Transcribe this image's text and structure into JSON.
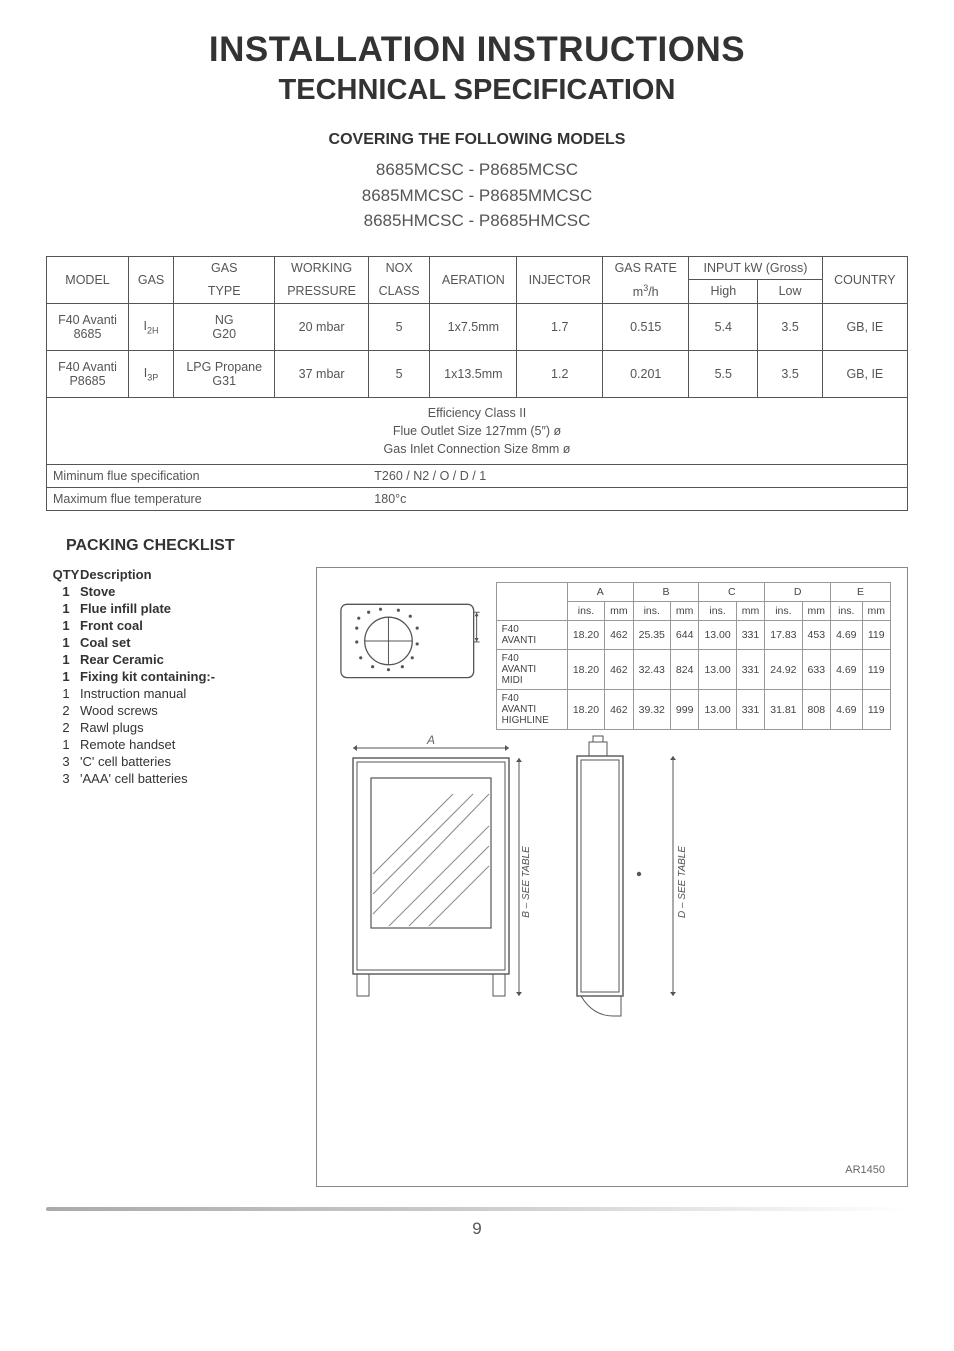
{
  "titles": {
    "main": "INSTALLATION INSTRUCTIONS",
    "sub": "TECHNICAL SPECIFICATION",
    "covering": "COVERING THE FOLLOWING MODELS"
  },
  "model_lines": [
    "8685MCSC - P8685MCSC",
    "8685MMCSC - P8685MMCSC",
    "8685HMCSC - P8685HMCSC"
  ],
  "spec_table": {
    "headers": {
      "model": "MODEL",
      "gas": "GAS",
      "gas_type": "GAS",
      "gas_type2": "TYPE",
      "working": "WORKING",
      "pressure": "PRESSURE",
      "nox": "NOX",
      "class": "CLASS",
      "aeration": "AERATION",
      "injector": "INJECTOR",
      "gas_rate": "GAS RATE",
      "gas_rate_unit": "m³/h",
      "input": "INPUT kW (Gross)",
      "high": "High",
      "low": "Low",
      "country": "COUNTRY"
    },
    "rows": [
      {
        "model": "F40 Avanti\n8685",
        "gas": "I₂H",
        "gas_type": "NG\nG20",
        "working": "20 mbar",
        "nox": "5",
        "aeration": "1x7.5mm",
        "injector": "1.7",
        "gas_rate": "0.515",
        "high": "5.4",
        "low": "3.5",
        "country": "GB, IE"
      },
      {
        "model": "F40 Avanti\nP8685",
        "gas": "I₃P",
        "gas_type": "LPG Propane\nG31",
        "working": "37 mbar",
        "nox": "5",
        "aeration": "1x13.5mm",
        "injector": "1.2",
        "gas_rate": "0.201",
        "high": "5.5",
        "low": "3.5",
        "country": "GB, IE"
      }
    ],
    "footer_lines": [
      "Efficiency Class II",
      "Flue Outlet Size 127mm (5″) ø",
      "Gas Inlet Connection Size 8mm ø"
    ],
    "min_flue_label": "Miminum flue specification",
    "min_flue_value": "T260 / N2 / O / D / 1",
    "max_temp_label": "Maximum flue temperature",
    "max_temp_value": "180°c"
  },
  "checklist": {
    "title": "PACKING CHECKLIST",
    "qty_header": "QTY",
    "desc_header": "Description",
    "items": [
      {
        "qty": "1",
        "desc": "Stove",
        "bold": true
      },
      {
        "qty": "1",
        "desc": "Flue infill plate",
        "bold": true
      },
      {
        "qty": "1",
        "desc": "Front coal",
        "bold": true
      },
      {
        "qty": "1",
        "desc": "Coal set",
        "bold": true
      },
      {
        "qty": "1",
        "desc": "Rear Ceramic",
        "bold": true
      },
      {
        "qty": "1",
        "desc": "Fixing kit containing:-",
        "bold": true
      },
      {
        "qty": "1",
        "desc": "Instruction manual",
        "bold": false
      },
      {
        "qty": "2",
        "desc": "Wood screws",
        "bold": false
      },
      {
        "qty": "2",
        "desc": "Rawl plugs",
        "bold": false
      },
      {
        "qty": "1",
        "desc": "Remote handset",
        "bold": false
      },
      {
        "qty": "3",
        "desc": "'C' cell batteries",
        "bold": false
      },
      {
        "qty": "3",
        "desc": "'AAA' cell batteries",
        "bold": false
      }
    ]
  },
  "dims_table": {
    "col_letters": [
      "A",
      "B",
      "C",
      "D",
      "E"
    ],
    "sub_headers": [
      "ins.",
      "mm"
    ],
    "rows": [
      {
        "label": "F40\nAVANTI",
        "vals": [
          "18.20",
          "462",
          "25.35",
          "644",
          "13.00",
          "331",
          "17.83",
          "453",
          "4.69",
          "119"
        ]
      },
      {
        "label": "F40\nAVANTI\nMIDI",
        "vals": [
          "18.20",
          "462",
          "32.43",
          "824",
          "13.00",
          "331",
          "24.92",
          "633",
          "4.69",
          "119"
        ]
      },
      {
        "label": "F40\nAVANTI\nHIGHLINE",
        "vals": [
          "18.20",
          "462",
          "39.32",
          "999",
          "13.00",
          "331",
          "31.81",
          "808",
          "4.69",
          "119"
        ]
      }
    ]
  },
  "figure": {
    "axis_A": "A",
    "axis_B": "B",
    "axis_C": "C",
    "axis_D": "D",
    "axis_E": "E",
    "see_table_b": "B  –  SEE TABLE",
    "see_table_d": "D  –  SEE TABLE",
    "ar_code": "AR1450"
  },
  "colors": {
    "text": "#333333",
    "border": "#555555",
    "light_border": "#999999",
    "box_border": "#888888",
    "muted": "#666666",
    "background": "#ffffff"
  },
  "page_number": "9"
}
